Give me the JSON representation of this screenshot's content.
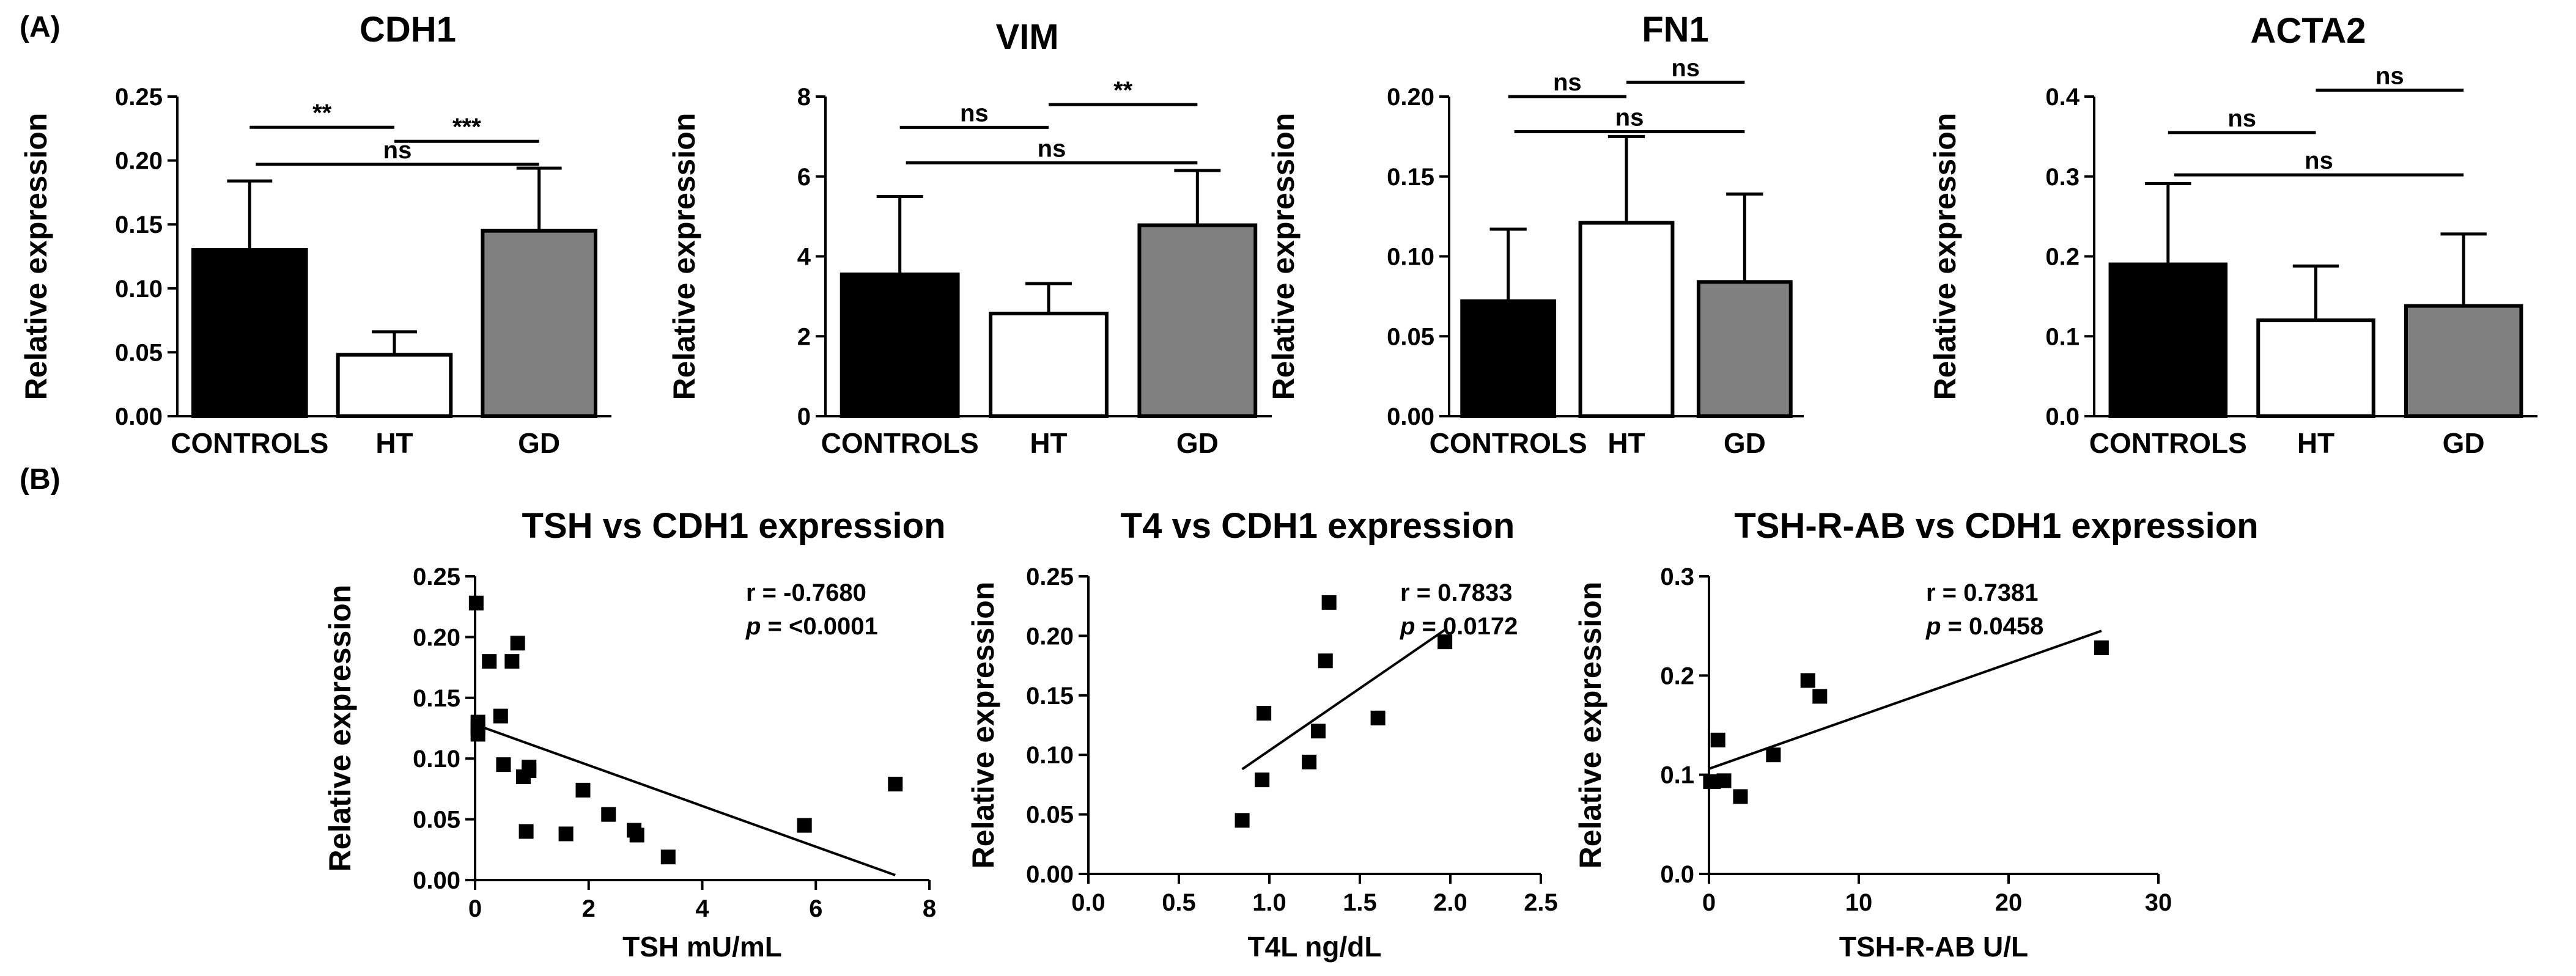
{
  "panel_labels": {
    "a": "(A)",
    "b": "(B)"
  },
  "chart_data": [
    {
      "type": "bar",
      "title": "CDH1",
      "ylabel": "Relative expression",
      "xlabel": "",
      "categories": [
        "CONTROLS",
        "HT",
        "GD"
      ],
      "values": [
        0.13,
        0.048,
        0.145
      ],
      "errors": [
        0.054,
        0.018,
        0.049
      ],
      "colors": [
        "#000000",
        "#ffffff",
        "#808080"
      ],
      "ylim": [
        0,
        0.25
      ],
      "yticks": [
        0,
        0.05,
        0.1,
        0.15,
        0.2,
        0.25
      ],
      "ytick_labels": [
        "0.00",
        "0.05",
        "0.10",
        "0.15",
        "0.20",
        "0.25"
      ],
      "brackets": [
        {
          "from": 0,
          "to": 1,
          "label": "**",
          "y": 0.226
        },
        {
          "from": 1,
          "to": 2,
          "label": "***",
          "y": 0.215
        },
        {
          "from": 0,
          "to": 2,
          "label": "ns",
          "y": 0.197
        }
      ]
    },
    {
      "type": "bar",
      "title": "VIM",
      "ylabel": "Relative expression",
      "xlabel": "",
      "categories": [
        "CONTROLS",
        "HT",
        "GD"
      ],
      "values": [
        3.55,
        2.57,
        4.78
      ],
      "errors": [
        1.95,
        0.75,
        1.37
      ],
      "colors": [
        "#000000",
        "#ffffff",
        "#808080"
      ],
      "ylim": [
        0,
        8
      ],
      "yticks": [
        0,
        2,
        4,
        6,
        8
      ],
      "ytick_labels": [
        "0",
        "2",
        "4",
        "6",
        "8"
      ],
      "brackets": [
        {
          "from": 0,
          "to": 1,
          "label": "ns",
          "y": 7.23
        },
        {
          "from": 1,
          "to": 2,
          "label": "**",
          "y": 7.8
        },
        {
          "from": 0,
          "to": 2,
          "label": "ns",
          "y": 6.34
        }
      ]
    },
    {
      "type": "bar",
      "title": "FN1",
      "ylabel": "Relative expression",
      "xlabel": "",
      "categories": [
        "CONTROLS",
        "HT",
        "GD"
      ],
      "values": [
        0.072,
        0.121,
        0.084
      ],
      "errors": [
        0.045,
        0.054,
        0.055
      ],
      "colors": [
        "#000000",
        "#ffffff",
        "#808080"
      ],
      "ylim": [
        0,
        0.2
      ],
      "yticks": [
        0,
        0.05,
        0.1,
        0.15,
        0.2
      ],
      "ytick_labels": [
        "0.00",
        "0.05",
        "0.10",
        "0.15",
        "0.20"
      ],
      "brackets": [
        {
          "from": 0,
          "to": 1,
          "label": "ns",
          "y": 0.2
        },
        {
          "from": 1,
          "to": 2,
          "label": "ns",
          "y": 0.209
        },
        {
          "from": 0,
          "to": 2,
          "label": "ns",
          "y": 0.178
        }
      ]
    },
    {
      "type": "bar",
      "title": "ACTA2",
      "ylabel": "Relative expression",
      "xlabel": "",
      "categories": [
        "CONTROLS",
        "HT",
        "GD"
      ],
      "values": [
        0.19,
        0.12,
        0.138
      ],
      "errors": [
        0.101,
        0.068,
        0.09
      ],
      "colors": [
        "#000000",
        "#ffffff",
        "#808080"
      ],
      "ylim": [
        0,
        0.4
      ],
      "yticks": [
        0,
        0.1,
        0.2,
        0.3,
        0.4
      ],
      "ytick_labels": [
        "0.0",
        "0.1",
        "0.2",
        "0.3",
        "0.4"
      ],
      "brackets": [
        {
          "from": 0,
          "to": 1,
          "label": "ns",
          "y": 0.355
        },
        {
          "from": 1,
          "to": 2,
          "label": "ns",
          "y": 0.408
        },
        {
          "from": 0,
          "to": 2,
          "label": "ns",
          "y": 0.302
        }
      ]
    },
    {
      "type": "scatter",
      "title": "TSH vs CDH1 expression",
      "xlabel": "TSH mU/mL",
      "ylabel": "Relative expression",
      "xlim": [
        0,
        8
      ],
      "ylim": [
        0,
        0.25
      ],
      "xticks": [
        0,
        2,
        4,
        6,
        8
      ],
      "xtick_labels": [
        "0",
        "2",
        "4",
        "6",
        "8"
      ],
      "yticks": [
        0,
        0.05,
        0.1,
        0.15,
        0.2,
        0.25
      ],
      "ytick_labels": [
        "0.00",
        "0.05",
        "0.10",
        "0.15",
        "0.20",
        "0.25"
      ],
      "x": [
        0.02,
        0.05,
        0.05,
        0.05,
        0.25,
        0.45,
        0.5,
        0.65,
        0.75,
        0.85,
        0.9,
        0.95,
        0.95,
        1.6,
        1.9,
        2.35,
        2.8,
        2.85,
        3.4,
        5.8,
        7.4
      ],
      "y": [
        0.228,
        0.13,
        0.125,
        0.12,
        0.18,
        0.135,
        0.095,
        0.18,
        0.195,
        0.085,
        0.04,
        0.093,
        0.09,
        0.038,
        0.074,
        0.054,
        0.041,
        0.037,
        0.019,
        0.045,
        0.079
      ],
      "fit": {
        "x": [
          0,
          7.4
        ],
        "y": [
          0.128,
          0.004
        ]
      },
      "stats": {
        "r_label": "r = -0.7680",
        "p_letter": "p",
        "p_value": " = <0.0001"
      }
    },
    {
      "type": "scatter",
      "title": "T4 vs CDH1 expression",
      "xlabel": "T4L ng/dL",
      "ylabel": "Relative expression",
      "xlim": [
        0,
        2.5
      ],
      "ylim": [
        0,
        0.25
      ],
      "xticks": [
        0,
        0.5,
        1,
        1.5,
        2,
        2.5
      ],
      "xtick_labels": [
        "0.0",
        "0.5",
        "1.0",
        "1.5",
        "2.0",
        "2.5"
      ],
      "yticks": [
        0,
        0.05,
        0.1,
        0.15,
        0.2,
        0.25
      ],
      "ytick_labels": [
        "0.00",
        "0.05",
        "0.10",
        "0.15",
        "0.20",
        "0.25"
      ],
      "x": [
        0.85,
        0.96,
        0.97,
        1.22,
        1.27,
        1.31,
        1.33,
        1.6,
        1.97
      ],
      "y": [
        0.045,
        0.079,
        0.135,
        0.094,
        0.12,
        0.179,
        0.228,
        0.131,
        0.195
      ],
      "fit": {
        "x": [
          0.85,
          1.97
        ],
        "y": [
          0.088,
          0.205
        ]
      },
      "stats": {
        "r_label": "r = 0.7833",
        "p_letter": "p",
        "p_value": " = 0.0172"
      }
    },
    {
      "type": "scatter",
      "title": "TSH-R-AB vs CDH1 expression",
      "xlabel": "TSH-R-AB U/L",
      "ylabel": "Relative expression",
      "xlim": [
        0,
        30
      ],
      "ylim": [
        0,
        0.3
      ],
      "xticks": [
        0,
        10,
        20,
        30
      ],
      "xtick_labels": [
        "0",
        "10",
        "20",
        "30"
      ],
      "yticks": [
        0,
        0.1,
        0.2,
        0.3
      ],
      "ytick_labels": [
        "0.0",
        "0.1",
        "0.2",
        "0.3"
      ],
      "x": [
        0.1,
        0.3,
        0.6,
        1.0,
        2.1,
        4.3,
        6.6,
        7.4,
        26.2
      ],
      "y": [
        0.093,
        0.093,
        0.135,
        0.094,
        0.078,
        0.12,
        0.195,
        0.179,
        0.228
      ],
      "fit": {
        "x": [
          0,
          26.2
        ],
        "y": [
          0.106,
          0.245
        ]
      },
      "stats": {
        "r_label": "r = 0.7381",
        "p_letter": "p",
        "p_value": " = 0.0458"
      }
    }
  ]
}
